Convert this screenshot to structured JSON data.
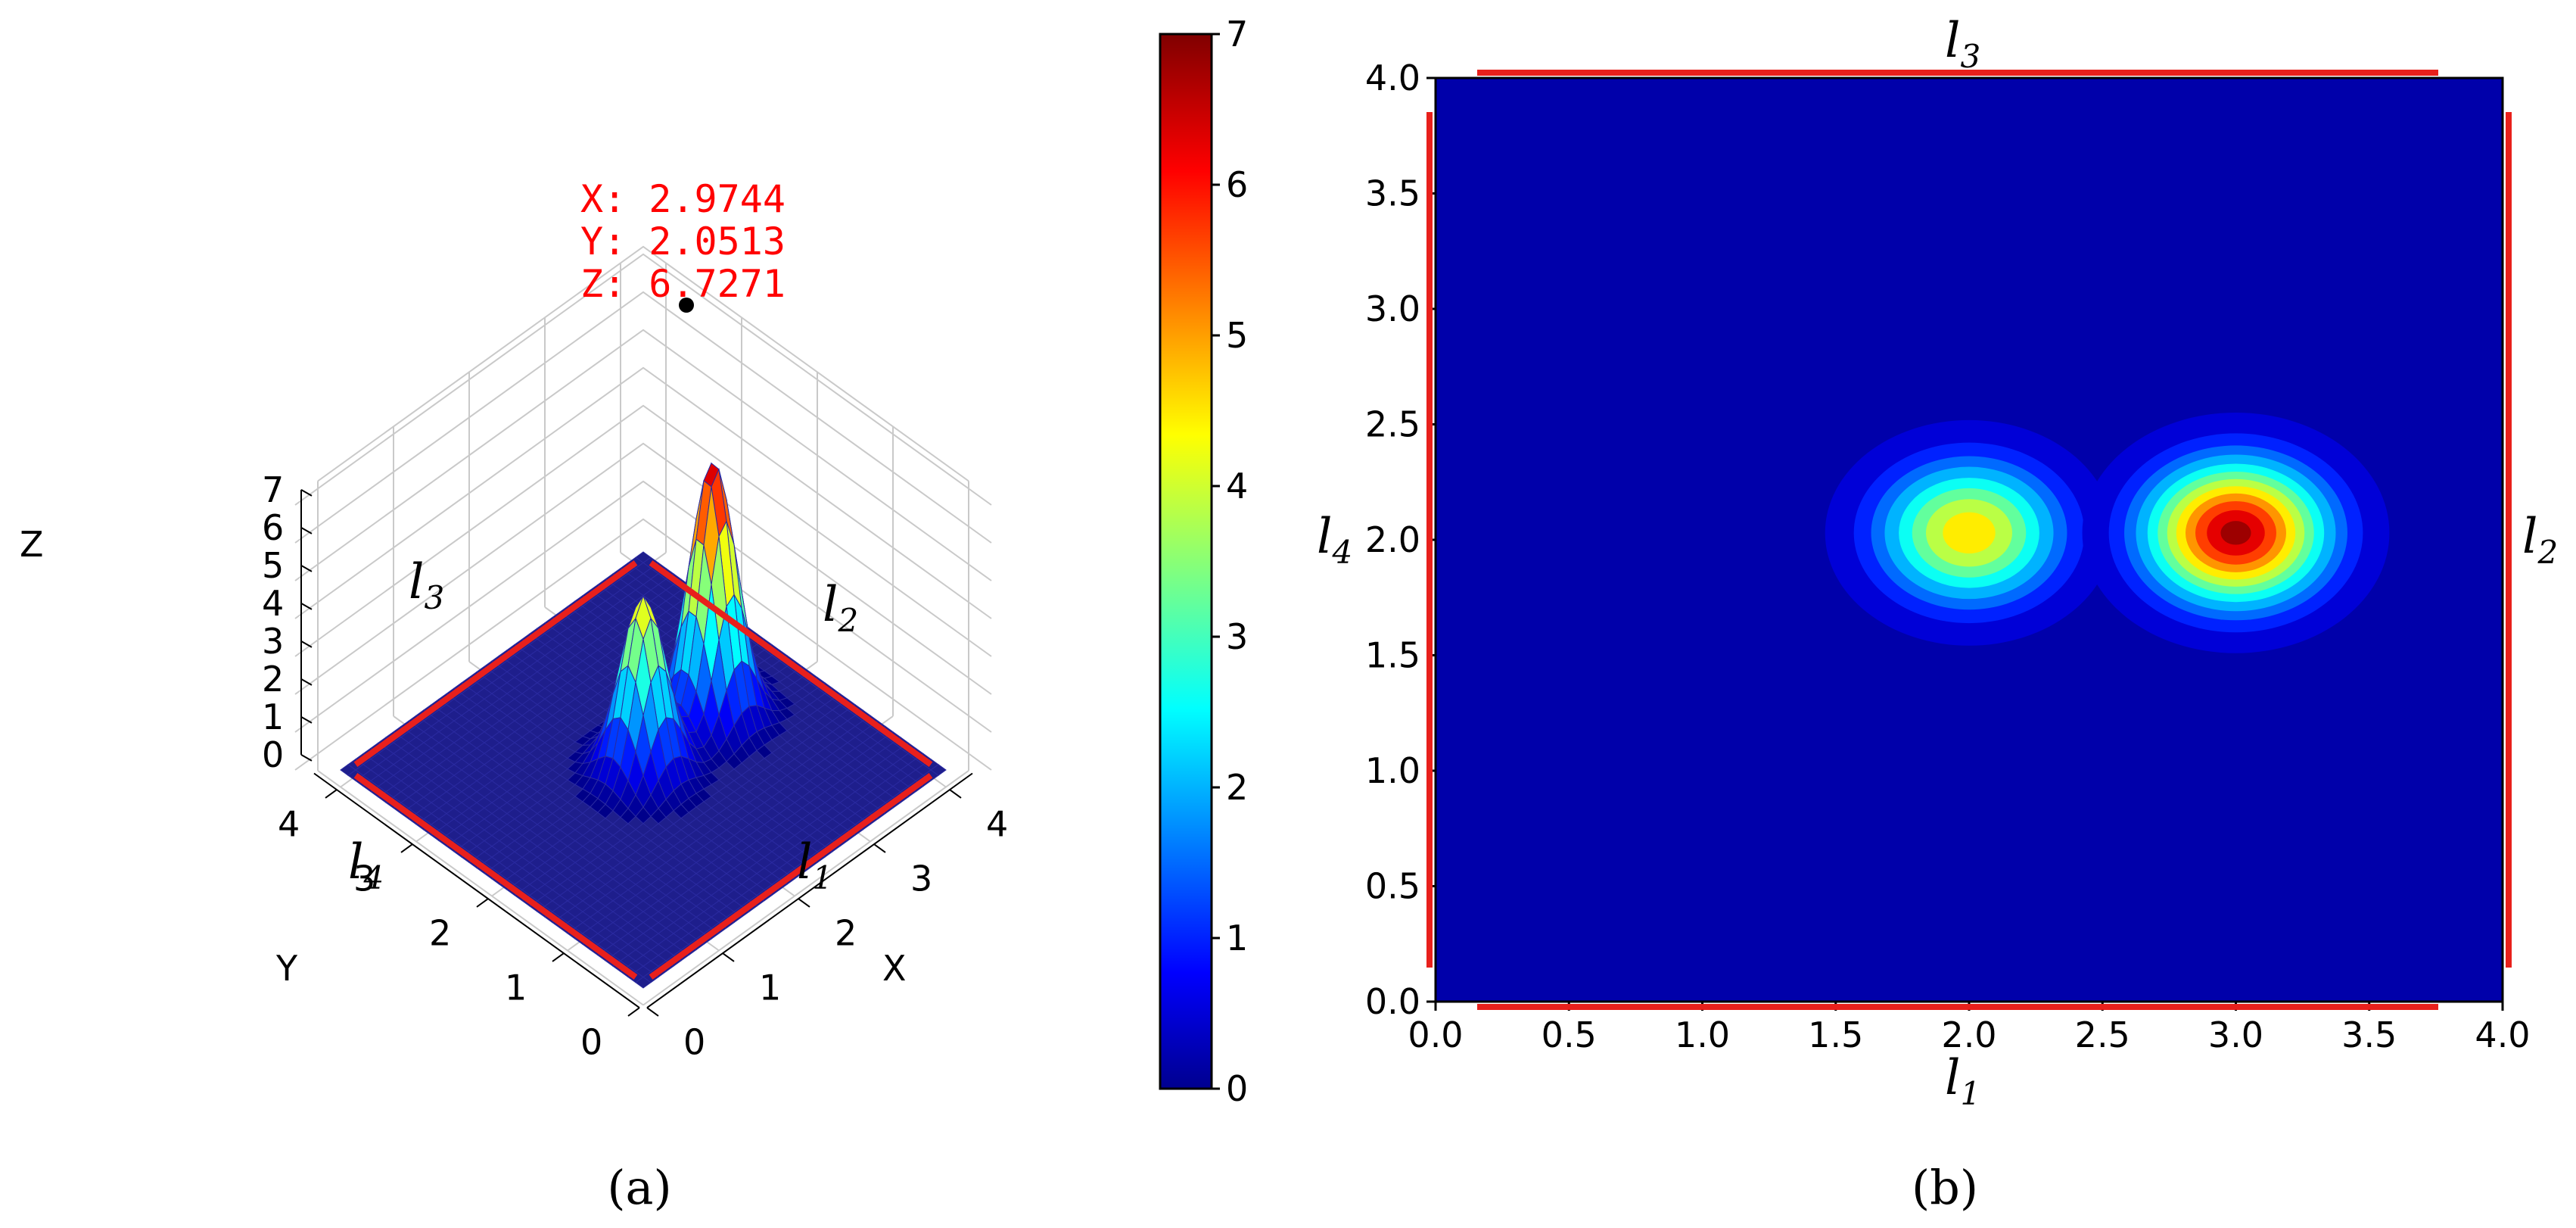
{
  "figure": {
    "caption_a": "(a)",
    "caption_b": "(b)"
  },
  "chart_data": [
    {
      "type": "surface",
      "panel": "a",
      "xlabel": "X",
      "ylabel": "Y",
      "zlabel": "Z",
      "xlim": [
        0,
        4
      ],
      "ylim": [
        0,
        4
      ],
      "zlim": [
        0,
        7
      ],
      "x_ticks": [
        "0",
        "1",
        "2",
        "3",
        "4"
      ],
      "y_ticks": [
        "0",
        "1",
        "2",
        "3",
        "4"
      ],
      "z_ticks": [
        "0",
        "1",
        "2",
        "3",
        "4",
        "5",
        "6",
        "7"
      ],
      "grid": true,
      "colormap": "jet",
      "peaks": [
        {
          "x": 2.0,
          "y": 2.0,
          "z": 4.6
        },
        {
          "x": 2.9744,
          "y": 2.0513,
          "z": 6.7271
        }
      ],
      "datatip": {
        "x_text": "X:  2.9744",
        "y_text": "Y:  2.0513",
        "z_text": "Z:  6.7271"
      },
      "boundary_labels": [
        {
          "name": "l",
          "sub": "3"
        },
        {
          "name": "l",
          "sub": "2"
        },
        {
          "name": "l",
          "sub": "4"
        },
        {
          "name": "l",
          "sub": "1"
        }
      ],
      "boundary_color": "#e8201c"
    },
    {
      "type": "colorbar",
      "colormap": "jet",
      "range": [
        0,
        7
      ],
      "ticks": [
        "0",
        "1",
        "2",
        "3",
        "4",
        "5",
        "6",
        "7"
      ]
    },
    {
      "type": "contour",
      "panel": "b",
      "xlim": [
        0,
        4
      ],
      "ylim": [
        0,
        4
      ],
      "x_ticks": [
        "0.0",
        "0.5",
        "1.0",
        "1.5",
        "2.0",
        "2.5",
        "3.0",
        "3.5",
        "4.0"
      ],
      "y_ticks": [
        "0.0",
        "0.5",
        "1.0",
        "1.5",
        "2.0",
        "2.5",
        "3.0",
        "3.5",
        "4.0"
      ],
      "colormap": "jet",
      "background_value": 0,
      "peaks": [
        {
          "x": 2.0,
          "y": 2.03,
          "z": 4.6
        },
        {
          "x": 3.0,
          "y": 2.03,
          "z": 6.7
        }
      ],
      "boundary_labels": [
        {
          "name": "l",
          "sub": "3",
          "side": "top"
        },
        {
          "name": "l",
          "sub": "2",
          "side": "right"
        },
        {
          "name": "l",
          "sub": "4",
          "side": "left"
        },
        {
          "name": "l",
          "sub": "1",
          "side": "bottom"
        }
      ],
      "boundary_color": "#e8201c"
    }
  ]
}
